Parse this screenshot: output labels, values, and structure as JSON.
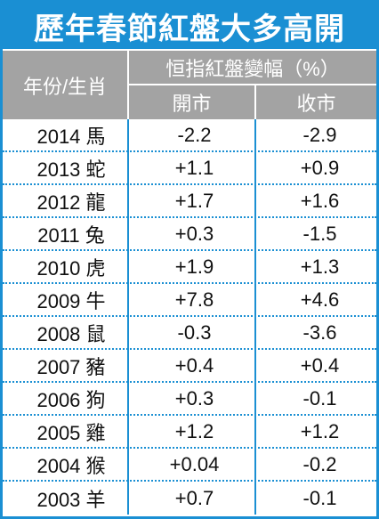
{
  "title": "歷年春節紅盤大多高開",
  "header": {
    "col_label": "年份/生肖",
    "metric": "恒指紅盤變幅（%）",
    "open": "開市",
    "close": "收市"
  },
  "rows": [
    {
      "year": "2014 馬",
      "open": "-2.2",
      "close": "-2.9"
    },
    {
      "year": "2013 蛇",
      "open": "+1.1",
      "close": "+0.9"
    },
    {
      "year": "2012 龍",
      "open": "+1.7",
      "close": "+1.6"
    },
    {
      "year": "2011 兔",
      "open": "+0.3",
      "close": "-1.5"
    },
    {
      "year": "2010 虎",
      "open": "+1.9",
      "close": "+1.3"
    },
    {
      "year": "2009 牛",
      "open": "+7.8",
      "close": "+4.6"
    },
    {
      "year": "2008 鼠",
      "open": "-0.3",
      "close": "-3.6"
    },
    {
      "year": "2007 豬",
      "open": "+0.4",
      "close": "+0.4"
    },
    {
      "year": "2006 狗",
      "open": "+0.3",
      "close": "-0.1"
    },
    {
      "year": "2005 雞",
      "open": "+1.2",
      "close": "+1.2"
    },
    {
      "year": "2004 猴",
      "open": "+0.04",
      "close": "-0.2"
    },
    {
      "year": "2003 羊",
      "open": "+0.7",
      "close": "-0.1"
    }
  ],
  "colors": {
    "accent": "#1a8fd3",
    "header_bg": "#a3a3a3"
  }
}
